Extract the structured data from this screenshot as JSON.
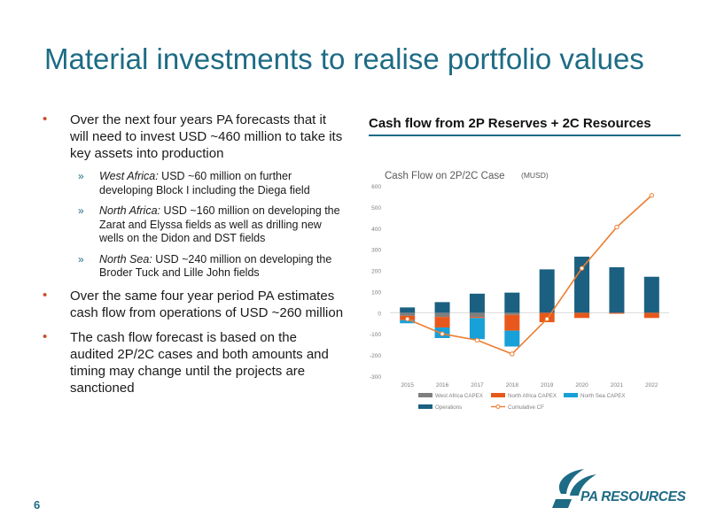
{
  "title": "Material investments to realise portfolio values",
  "bullets": [
    {
      "text": "Over the next four years PA forecasts that it will need to invest USD ~460 million to take its key assets into production",
      "subs": [
        {
          "region": "West Africa:",
          "text": " USD ~60 million on further developing Block I including the Diega field"
        },
        {
          "region": "North Africa:",
          "text": " USD ~160 million on developing the Zarat and Elyssa fields as well as drilling new wells on the Didon and DST fields"
        },
        {
          "region": "North Sea:",
          "text": " USD ~240 million on developing the Broder Tuck and Lille John fields"
        }
      ]
    },
    {
      "text": "Over the same four year period PA estimates cash flow from operations of USD ~260 million"
    },
    {
      "text": "The cash flow forecast is based on the audited 2P/2C cases and both amounts and timing may change until the projects are sanctioned"
    }
  ],
  "chart_heading": "Cash flow from 2P Reserves + 2C Resources",
  "page_number": "6",
  "logo": {
    "text": "PA RESOURCES"
  },
  "colors": {
    "accent": "#1d6b85",
    "bullet": "#c8522a",
    "west_africa": "#7f7f7f",
    "north_africa": "#e8581c",
    "north_sea": "#18a0d8",
    "operations": "#1b6080",
    "cumulative": "#ed7d31"
  },
  "chart_data": {
    "type": "bar",
    "title": "Cash Flow on 2P/2C Case",
    "subtitle": "(MUSD)",
    "categories": [
      "2015",
      "2016",
      "2017",
      "2018",
      "2019",
      "2020",
      "2021",
      "2022"
    ],
    "ylim": [
      -300,
      600
    ],
    "yticks": [
      -300,
      -200,
      -100,
      0,
      100,
      200,
      300,
      400,
      500,
      600
    ],
    "legend_position": "bottom",
    "series": [
      {
        "name": "West Africa CAPEX",
        "kind": "bar",
        "values": [
          -15,
          -20,
          -20,
          -10,
          0,
          0,
          0,
          0
        ]
      },
      {
        "name": "North Africa CAPEX",
        "kind": "bar",
        "values": [
          -20,
          -50,
          -5,
          -75,
          -45,
          -25,
          -5,
          -25
        ]
      },
      {
        "name": "North Sea CAPEX",
        "kind": "bar",
        "values": [
          -15,
          -50,
          -100,
          -75,
          0,
          0,
          0,
          0
        ]
      },
      {
        "name": "Operations",
        "kind": "bar",
        "values": [
          25,
          50,
          90,
          95,
          205,
          265,
          215,
          170
        ]
      },
      {
        "name": "Cumulative CF",
        "kind": "line",
        "values": [
          -30,
          -100,
          -130,
          -195,
          -30,
          210,
          405,
          555
        ]
      }
    ]
  }
}
